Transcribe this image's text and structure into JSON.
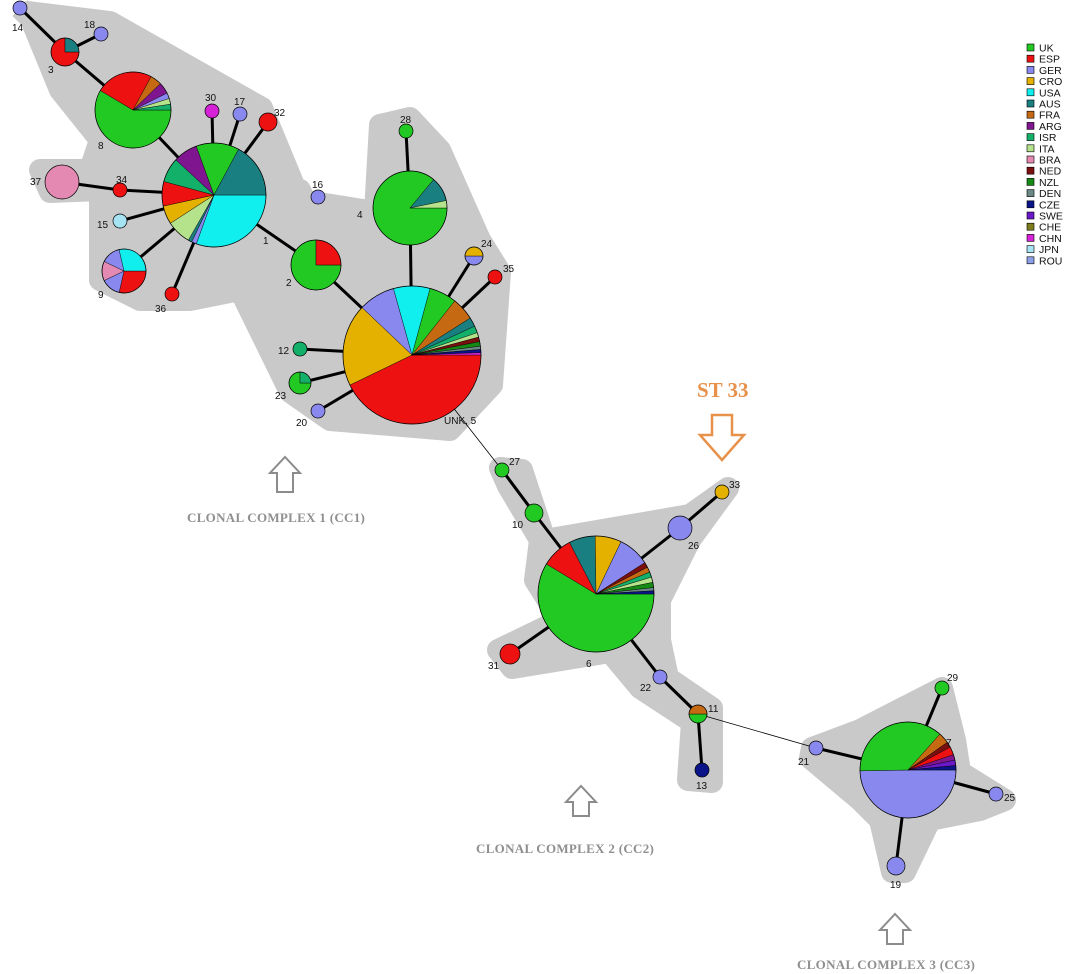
{
  "legend": [
    {
      "code": "UK",
      "color": "#22c922"
    },
    {
      "code": "ESP",
      "color": "#ee1111"
    },
    {
      "code": "GER",
      "color": "#8888ee"
    },
    {
      "code": "CRO",
      "color": "#e4b100"
    },
    {
      "code": "USA",
      "color": "#11eeee"
    },
    {
      "code": "AUS",
      "color": "#1a7f80"
    },
    {
      "code": "FRA",
      "color": "#c56a12"
    },
    {
      "code": "ARG",
      "color": "#80168f"
    },
    {
      "code": "ISR",
      "color": "#13b06a"
    },
    {
      "code": "ITA",
      "color": "#b4e38c"
    },
    {
      "code": "BRA",
      "color": "#e48ab2"
    },
    {
      "code": "NED",
      "color": "#7a0f0f"
    },
    {
      "code": "NZL",
      "color": "#148a14"
    },
    {
      "code": "DEN",
      "color": "#6b8a86"
    },
    {
      "code": "CZE",
      "color": "#0a1488"
    },
    {
      "code": "SWE",
      "color": "#6a18c8"
    },
    {
      "code": "CHE",
      "color": "#7d7d1e"
    },
    {
      "code": "CHN",
      "color": "#d622d6"
    },
    {
      "code": "JPN",
      "color": "#a6e3f3"
    },
    {
      "code": "ROU",
      "color": "#8f9fe6"
    }
  ],
  "nodes": [
    {
      "id": "14",
      "label": "14",
      "slices": [
        [
          "GER",
          1
        ]
      ]
    },
    {
      "id": "18",
      "label": "18",
      "slices": [
        [
          "GER",
          1
        ]
      ]
    },
    {
      "id": "3",
      "label": "3",
      "slices": [
        [
          "ESP",
          3
        ],
        [
          "AUS",
          1
        ]
      ]
    },
    {
      "id": "8",
      "label": "8",
      "slices": [
        [
          "UK",
          12
        ],
        [
          "ESP",
          5
        ],
        [
          "FRA",
          1
        ],
        [
          "ARG",
          1
        ],
        [
          "GER",
          0.5
        ],
        [
          "ITA",
          0.5
        ],
        [
          "ISR",
          0.5
        ]
      ]
    },
    {
      "id": "30",
      "label": "30",
      "slices": [
        [
          "CHN",
          1
        ]
      ]
    },
    {
      "id": "17",
      "label": "17",
      "slices": [
        [
          "GER",
          1
        ]
      ]
    },
    {
      "id": "32",
      "label": "32",
      "slices": [
        [
          "ESP",
          1
        ]
      ]
    },
    {
      "id": "1",
      "label": "1",
      "slices": [
        [
          "USA",
          8
        ],
        [
          "GER",
          0.4
        ],
        [
          "AUS",
          0.3
        ],
        [
          "ITA",
          2
        ],
        [
          "CRO",
          1.5
        ],
        [
          "ESP",
          2
        ],
        [
          "ISR",
          2
        ],
        [
          "ARG",
          2
        ],
        [
          "UK",
          3.5
        ],
        [
          "AUS",
          4.5
        ]
      ]
    },
    {
      "id": "37",
      "label": "37",
      "slices": [
        [
          "BRA",
          1
        ]
      ]
    },
    {
      "id": "34",
      "label": "34",
      "slices": [
        [
          "ESP",
          1
        ]
      ]
    },
    {
      "id": "15",
      "label": "15",
      "slices": [
        [
          "JPN",
          1
        ]
      ]
    },
    {
      "id": "9",
      "label": "9",
      "slices": [
        [
          "ESP",
          2
        ],
        [
          "GER",
          1
        ],
        [
          "BRA",
          1
        ],
        [
          "GER",
          1
        ],
        [
          "USA",
          2
        ]
      ]
    },
    {
      "id": "36",
      "label": "36",
      "slices": [
        [
          "ESP",
          1
        ]
      ]
    },
    {
      "id": "16",
      "label": "16",
      "slices": [
        [
          "GER",
          1
        ]
      ]
    },
    {
      "id": "2",
      "label": "2",
      "slices": [
        [
          "UK",
          3
        ],
        [
          "ESP",
          1
        ]
      ]
    },
    {
      "id": "28",
      "label": "28",
      "slices": [
        [
          "UK",
          1
        ]
      ]
    },
    {
      "id": "4",
      "label": "4",
      "slices": [
        [
          "UK",
          8
        ],
        [
          "AUS",
          1
        ],
        [
          "ITA",
          0.3
        ]
      ]
    },
    {
      "id": "24",
      "label": "24",
      "slices": [
        [
          "GER",
          1
        ],
        [
          "CRO",
          1
        ]
      ]
    },
    {
      "id": "35",
      "label": "35",
      "slices": [
        [
          "ESP",
          1
        ]
      ]
    },
    {
      "id": "12",
      "label": "12",
      "slices": [
        [
          "ISR",
          1
        ]
      ]
    },
    {
      "id": "23",
      "label": "23",
      "slices": [
        [
          "UK",
          3
        ],
        [
          "ISR",
          1
        ]
      ]
    },
    {
      "id": "20",
      "label": "20",
      "slices": [
        [
          "GER",
          1
        ]
      ]
    },
    {
      "id": "5",
      "label": "UNK, 5",
      "slices": [
        [
          "ESP",
          40
        ],
        [
          "CRO",
          18
        ],
        [
          "GER",
          8
        ],
        [
          "USA",
          8
        ],
        [
          "UK",
          6
        ],
        [
          "FRA",
          5
        ],
        [
          "AUS",
          2
        ],
        [
          "ISR",
          1.5
        ],
        [
          "ITA",
          1
        ],
        [
          "NED",
          1
        ],
        [
          "NZL",
          1
        ],
        [
          "DEN",
          0.7
        ],
        [
          "CZE",
          0.7
        ],
        [
          "CHN",
          0.5
        ]
      ]
    },
    {
      "id": "27",
      "label": "27",
      "slices": [
        [
          "UK",
          1
        ]
      ]
    },
    {
      "id": "10",
      "label": "10",
      "slices": [
        [
          "UK",
          1
        ]
      ]
    },
    {
      "id": "33",
      "label": "33",
      "slices": [
        [
          "CRO",
          1
        ]
      ]
    },
    {
      "id": "26",
      "label": "26",
      "slices": [
        [
          "GER",
          1
        ]
      ]
    },
    {
      "id": "6",
      "label": "6",
      "slices": [
        [
          "UK",
          40
        ],
        [
          "ESP",
          6
        ],
        [
          "AUS",
          5
        ],
        [
          "CRO",
          5
        ],
        [
          "GER",
          6
        ],
        [
          "NED",
          1
        ],
        [
          "FRA",
          1
        ],
        [
          "ISR",
          1
        ],
        [
          "ITA",
          1
        ],
        [
          "NZL",
          1
        ],
        [
          "DEN",
          0.6
        ],
        [
          "CZE",
          0.6
        ]
      ]
    },
    {
      "id": "31",
      "label": "31",
      "slices": [
        [
          "ESP",
          1
        ]
      ]
    },
    {
      "id": "22",
      "label": "22",
      "slices": [
        [
          "GER",
          1
        ]
      ]
    },
    {
      "id": "11",
      "label": "11",
      "slices": [
        [
          "UK",
          1
        ],
        [
          "FRA",
          1
        ]
      ]
    },
    {
      "id": "13",
      "label": "13",
      "slices": [
        [
          "CZE",
          1
        ]
      ]
    },
    {
      "id": "29",
      "label": "29",
      "slices": [
        [
          "UK",
          1
        ]
      ]
    },
    {
      "id": "7",
      "label": "7",
      "slices": [
        [
          "GER",
          27
        ],
        [
          "UK",
          20
        ],
        [
          "FRA",
          2
        ],
        [
          "NED",
          1
        ],
        [
          "ESP",
          1.5
        ],
        [
          "ARG",
          1
        ],
        [
          "SWE",
          1
        ],
        [
          "CZE",
          0.8
        ]
      ]
    },
    {
      "id": "21",
      "label": "21",
      "slices": [
        [
          "GER",
          1
        ]
      ]
    },
    {
      "id": "25",
      "label": "25",
      "slices": [
        [
          "GER",
          1
        ]
      ]
    },
    {
      "id": "19",
      "label": "19",
      "slices": [
        [
          "GER",
          1
        ]
      ]
    }
  ],
  "edges": [
    [
      "14",
      "3"
    ],
    [
      "18",
      "3"
    ],
    [
      "3",
      "8"
    ],
    [
      "8",
      "1"
    ],
    [
      "30",
      "1"
    ],
    [
      "17",
      "1"
    ],
    [
      "32",
      "1"
    ],
    [
      "37",
      "34"
    ],
    [
      "34",
      "1"
    ],
    [
      "15",
      "1"
    ],
    [
      "9",
      "1"
    ],
    [
      "36",
      "1"
    ],
    [
      "1",
      "2"
    ],
    [
      "2",
      "5"
    ],
    [
      "28",
      "4"
    ],
    [
      "4",
      "5"
    ],
    [
      "24",
      "5"
    ],
    [
      "35",
      "5"
    ],
    [
      "12",
      "5"
    ],
    [
      "23",
      "5"
    ],
    [
      "20",
      "5"
    ],
    [
      "5",
      "27"
    ],
    [
      "27",
      "10"
    ],
    [
      "10",
      "6"
    ],
    [
      "33",
      "26"
    ],
    [
      "26",
      "6"
    ],
    [
      "31",
      "6"
    ],
    [
      "6",
      "22"
    ],
    [
      "22",
      "11"
    ],
    [
      "11",
      "13"
    ],
    [
      "11",
      "21"
    ],
    [
      "21",
      "7"
    ],
    [
      "29",
      "7"
    ],
    [
      "25",
      "7"
    ],
    [
      "19",
      "7"
    ]
  ],
  "captions": {
    "cc1": "CLONAL COMPLEX 1 (CC1)",
    "cc2": "CLONAL COMPLEX 2 (CC2)",
    "cc3": "CLONAL COMPLEX 3 (CC3)",
    "highlight": "ST 33"
  },
  "colors": {
    "halo": "#c9c9c9",
    "highlight": "#e8914a",
    "arrow_gray": "#8c8c8c"
  }
}
